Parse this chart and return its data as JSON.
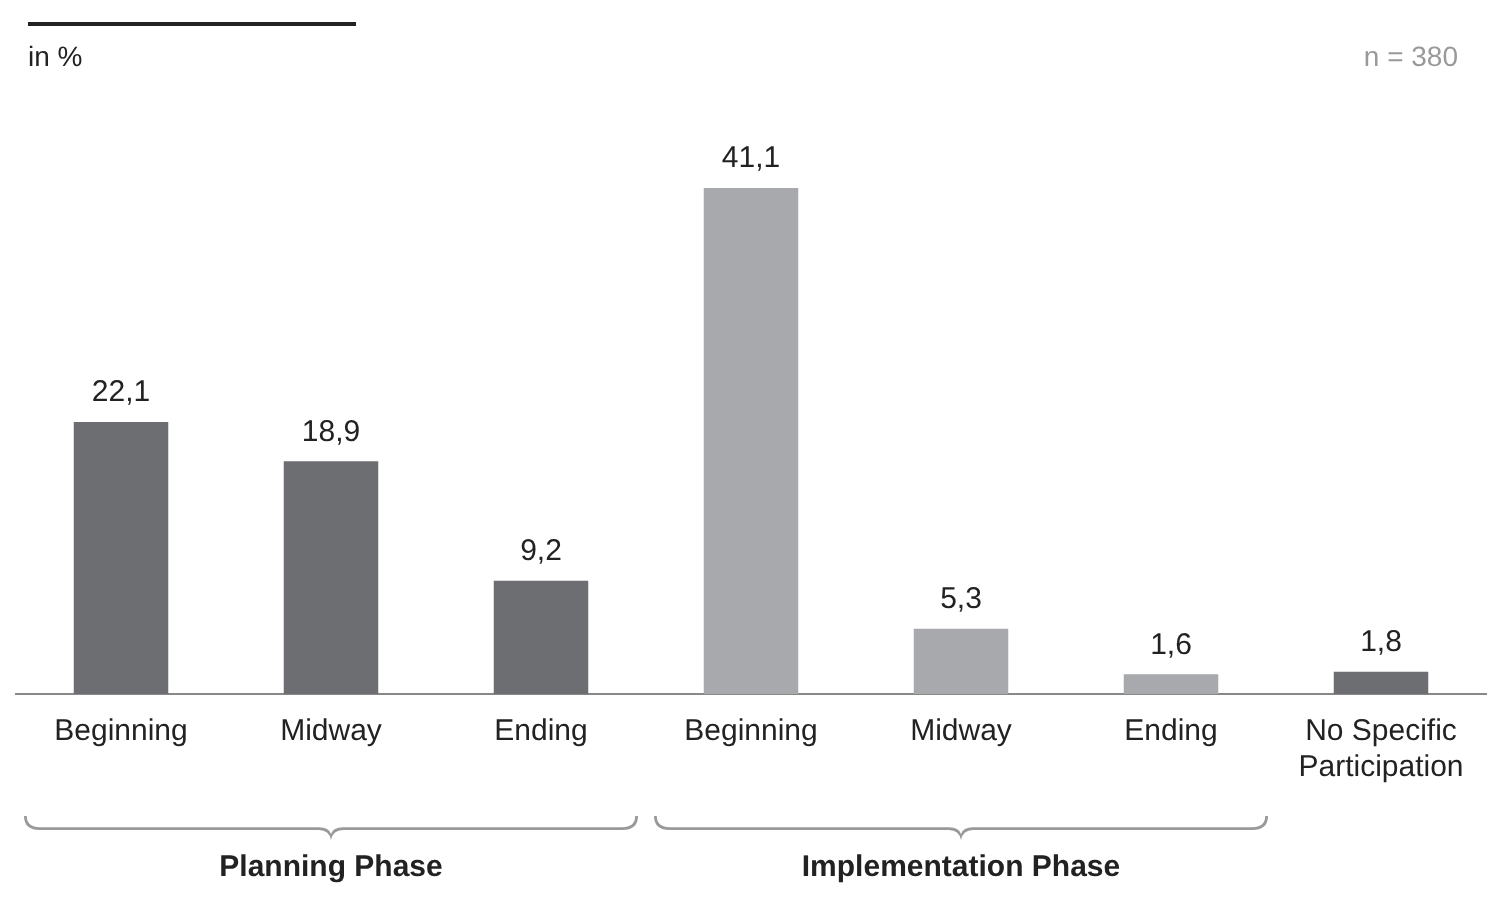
{
  "chart_data": {
    "type": "bar",
    "categories": [
      "Beginning",
      "Midway",
      "Ending",
      "Beginning",
      "Midway",
      "Ending",
      "No Specific Participation"
    ],
    "values": [
      22.1,
      18.9,
      9.2,
      41.1,
      5.3,
      1.6,
      1.8
    ],
    "colors": [
      "#6d6e71",
      "#6d6e71",
      "#6d6e71",
      "#a7a9ac",
      "#a7a9ac",
      "#a7a9ac",
      "#6d6e71"
    ],
    "value_labels": [
      "22,1",
      "18,9",
      "9,2",
      "41,1",
      "5,3",
      "1,6",
      "1,8"
    ],
    "grid": false,
    "legend": false,
    "annotations": [
      "in %",
      "n = 380",
      "Planning Phase",
      "Implementation Phase"
    ]
  }
}
